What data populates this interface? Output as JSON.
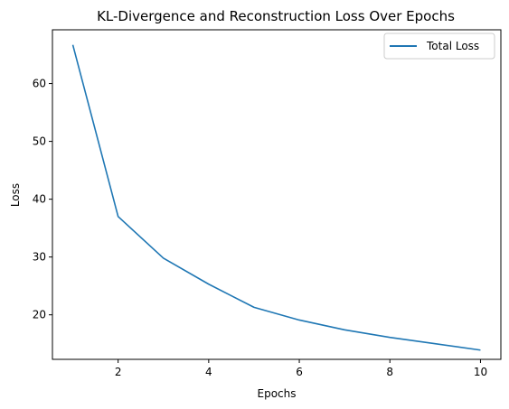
{
  "chart_data": {
    "type": "line",
    "title": "KL-Divergence and Reconstruction Loss Over Epochs",
    "xlabel": "Epochs",
    "ylabel": "Loss",
    "xlim": [
      0.55,
      10.45
    ],
    "ylim": [
      12.3,
      69.3
    ],
    "xticks": [
      2,
      4,
      6,
      8,
      10
    ],
    "yticks": [
      20,
      30,
      40,
      50,
      60
    ],
    "grid": false,
    "legend_position": "top-right",
    "series": [
      {
        "name": "Total Loss",
        "color": "#1f77b4",
        "x": [
          1,
          2,
          3,
          4,
          5,
          6,
          7,
          8,
          9,
          10
        ],
        "y": [
          66.7,
          37.0,
          29.8,
          25.3,
          21.3,
          19.1,
          17.4,
          16.1,
          15.0,
          13.9
        ]
      }
    ]
  }
}
